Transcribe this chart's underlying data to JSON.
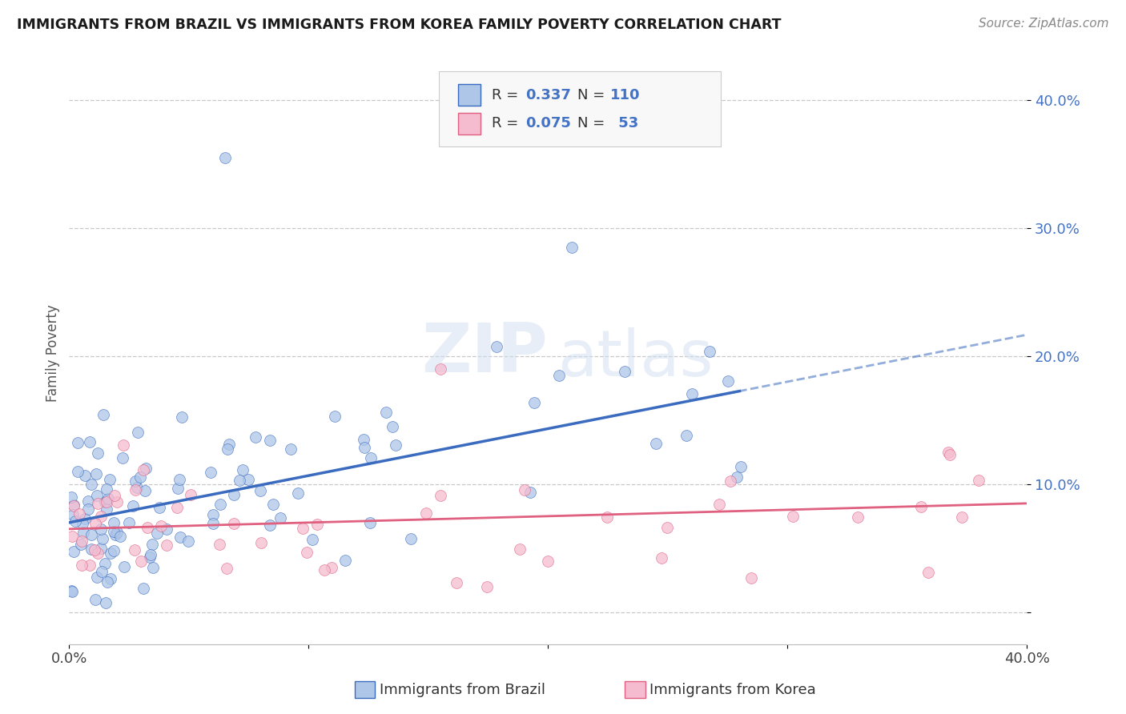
{
  "title": "IMMIGRANTS FROM BRAZIL VS IMMIGRANTS FROM KOREA FAMILY POVERTY CORRELATION CHART",
  "source": "Source: ZipAtlas.com",
  "ylabel": "Family Poverty",
  "xlim": [
    0.0,
    0.4
  ],
  "ylim": [
    -0.025,
    0.43
  ],
  "yticks": [
    0.0,
    0.1,
    0.2,
    0.3,
    0.4
  ],
  "ytick_labels": [
    "",
    "10.0%",
    "20.0%",
    "30.0%",
    "40.0%"
  ],
  "brazil_color": "#aec6e8",
  "brazil_line_color": "#3a6bbf",
  "korea_color": "#f5bcd0",
  "korea_line_color": "#e06080",
  "brazil_R": "0.337",
  "brazil_N": "110",
  "korea_R": "0.075",
  "korea_N": "53",
  "watermark": "ZIPatlas",
  "background_color": "#ffffff",
  "grid_color": "#c8c8c8"
}
